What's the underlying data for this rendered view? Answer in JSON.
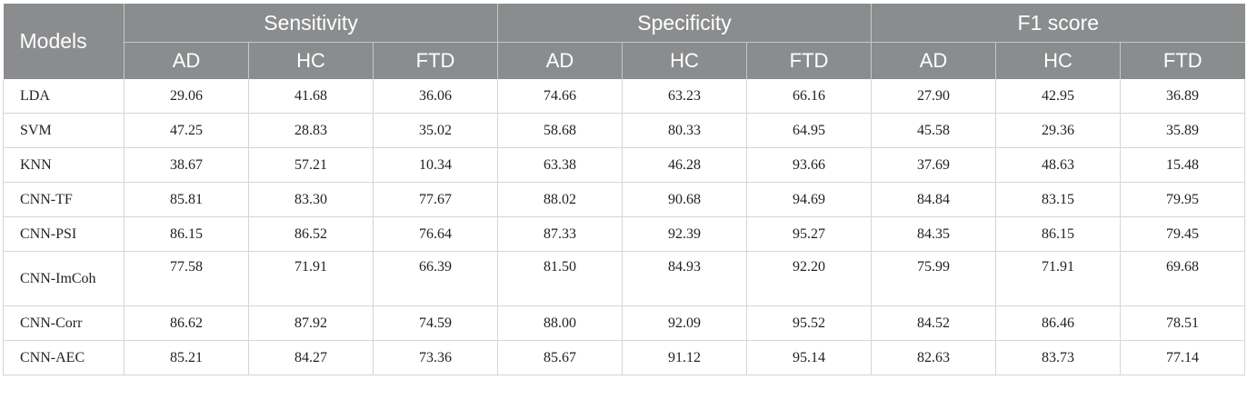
{
  "header": {
    "models_label": "Models",
    "groups": [
      "Sensitivity",
      "Specificity",
      "F1 score"
    ],
    "subcolumns": [
      "AD",
      "HC",
      "FTD",
      "AD",
      "HC",
      "FTD",
      "AD",
      "HC",
      "FTD"
    ]
  },
  "rows": [
    {
      "model": "LDA",
      "values": [
        "29.06",
        "41.68",
        "36.06",
        "74.66",
        "63.23",
        "66.16",
        "27.90",
        "42.95",
        "36.89"
      ]
    },
    {
      "model": "SVM",
      "values": [
        "47.25",
        "28.83",
        "35.02",
        "58.68",
        "80.33",
        "64.95",
        "45.58",
        "29.36",
        "35.89"
      ]
    },
    {
      "model": "KNN",
      "values": [
        "38.67",
        "57.21",
        "10.34",
        "63.38",
        "46.28",
        "93.66",
        "37.69",
        "48.63",
        "15.48"
      ]
    },
    {
      "model": "CNN-TF",
      "values": [
        "85.81",
        "83.30",
        "77.67",
        "88.02",
        "90.68",
        "94.69",
        "84.84",
        "83.15",
        "79.95"
      ]
    },
    {
      "model": "CNN-PSI",
      "values": [
        "86.15",
        "86.52",
        "76.64",
        "87.33",
        "92.39",
        "95.27",
        "84.35",
        "86.15",
        "79.45"
      ]
    },
    {
      "model": "CNN-ImCoh",
      "values": [
        "77.58",
        "71.91",
        "66.39",
        "81.50",
        "84.93",
        "92.20",
        "75.99",
        "71.91",
        "69.68"
      ]
    },
    {
      "model": "CNN-Corr",
      "values": [
        "86.62",
        "87.92",
        "74.59",
        "88.00",
        "92.09",
        "95.52",
        "84.52",
        "86.46",
        "78.51"
      ]
    },
    {
      "model": "CNN-AEC",
      "values": [
        "85.21",
        "84.27",
        "73.36",
        "85.67",
        "91.12",
        "95.14",
        "82.63",
        "83.73",
        "77.14"
      ]
    }
  ]
}
